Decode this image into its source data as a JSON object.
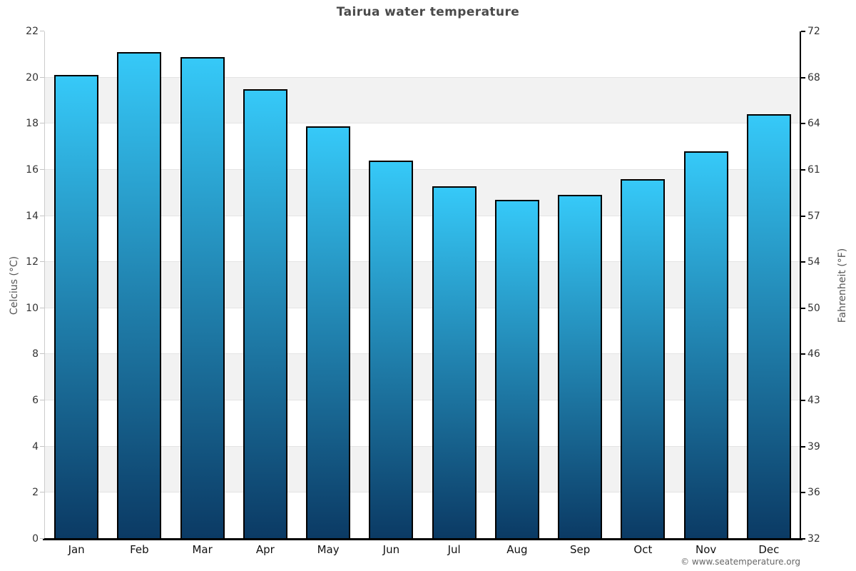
{
  "chart_data": {
    "type": "bar",
    "title": "Tairua water temperature",
    "categories": [
      "Jan",
      "Feb",
      "Mar",
      "Apr",
      "May",
      "Jun",
      "Jul",
      "Aug",
      "Sep",
      "Oct",
      "Nov",
      "Dec"
    ],
    "values": [
      20.1,
      21.1,
      20.9,
      19.5,
      17.9,
      16.4,
      15.3,
      14.7,
      14.9,
      15.6,
      16.8,
      18.4
    ],
    "ylabel_left": "Celcius (°C)",
    "ylabel_right": "Fahrenheit (°F)",
    "yticks_left": [
      0,
      2,
      4,
      6,
      8,
      10,
      12,
      14,
      16,
      18,
      20,
      22
    ],
    "yticks_right": [
      32,
      36,
      39,
      43,
      46,
      50,
      54,
      57,
      61,
      64,
      68,
      72
    ],
    "ylim": [
      0,
      22
    ],
    "legend": "none",
    "grid": "alternating-horizontal-bands",
    "colors": {
      "bar_top": "#36c9f8",
      "bar_bottom": "#0b3a64",
      "bar_border": "#000000",
      "band_light": "#ffffff",
      "band_dark": "#f2f2f2",
      "title": "#4a4a4a"
    }
  },
  "footer": {
    "copyright": "© www.seatemperature.org"
  }
}
